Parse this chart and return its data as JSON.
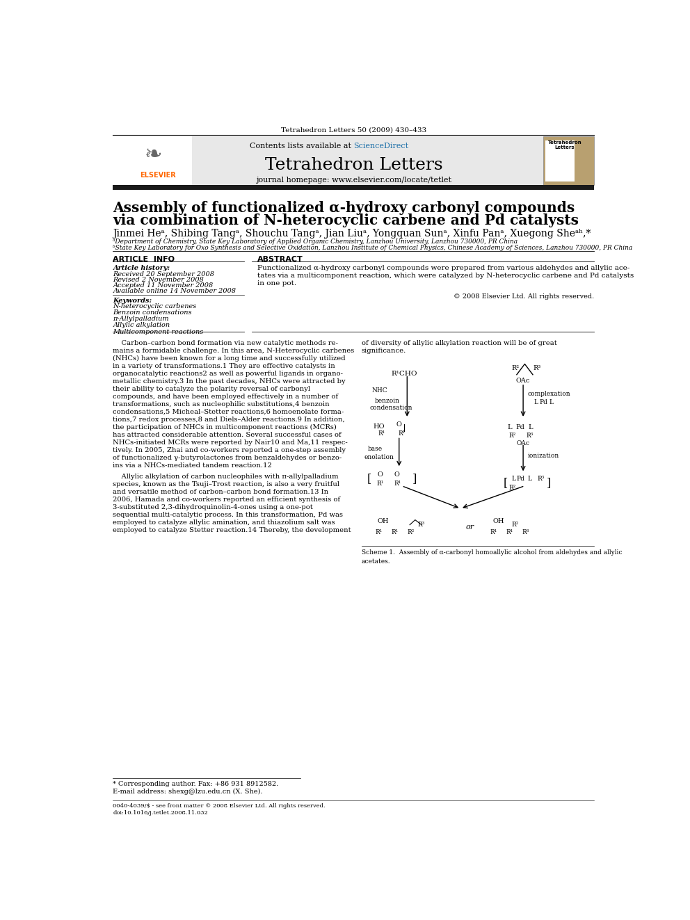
{
  "page_width": 9.92,
  "page_height": 13.23,
  "bg_color": "#ffffff",
  "journal_ref": "Tetrahedron Letters 50 (2009) 430–433",
  "header_bg": "#e8e8e8",
  "header_text": "Contents lists available at ScienceDirect",
  "sciencedirect_color": "#1a6ea8",
  "journal_title": "Tetrahedron Letters",
  "journal_homepage": "journal homepage: www.elsevier.com/locate/tetlet",
  "thick_bar_color": "#1a1a1a",
  "article_title_line1": "Assembly of functionalized α-hydroxy carbonyl compounds",
  "article_title_line2": "via combination of N-heterocyclic carbene and Pd catalysts",
  "authors": "Jinmei Heᵃ, Shibing Tangᵃ, Shouchu Tangᵃ, Jian Liuᵃ, Yongquan Sunᵃ, Xinfu Panᵃ, Xuegong Sheᵃʰ,*",
  "affil_a": "ᵃDepartment of Chemistry, State Key Laboratory of Applied Organic Chemistry, Lanzhou University, Lanzhou 730000, PR China",
  "affil_b": "ᵇState Key Laboratory for Oxo Synthesis and Selective Oxidation, Lanzhou Institute of Chemical Physics, Chinese Academy of Sciences, Lanzhou 730000, PR China",
  "article_info_label": "ARTICLE  INFO",
  "abstract_label": "ABSTRACT",
  "article_history_label": "Article history:",
  "received": "Received 20 September 2008",
  "revised": "Revised 2 November 2008",
  "accepted": "Accepted 11 November 2008",
  "available": "Available online 14 November 2008",
  "keywords_label": "Keywords:",
  "keywords": [
    "N-heterocyclic carbenes",
    "Benzoin condensations",
    "π-Allylpalladium",
    "Allylic alkylation",
    "Multicomponent reactions"
  ],
  "abstract_text": "Functionalized α-hydroxy carbonyl compounds were prepared from various aldehydes and allylic acetates via a multicomponent reaction, which were catalyzed by N-heterocyclic carbene and Pd catalysts in one pot.",
  "copyright": "© 2008 Elsevier Ltd. All rights reserved.",
  "body_col1_para1": "    Carbon–carbon bond formation via new catalytic methods remains a formidable challenge. In this area, N-Heterocyclic carbenes (NHCs) have been known for a long time and successfully utilized in a variety of transformations.1 They are effective catalysts in organocatalytic reactions2 as well as powerful ligands in organometallic chemistry.3 In the past decades, NHCs were attracted by their ability to catalyze the polarity reversal of carbonyl compounds, and have been employed effectively in a number of transformations, such as nucleophilic substitutions,4 benzoin condensations,5 Micheal–Stetter reactions,6 homoenolate formations,7 redox processes,8 and Diels–Alder reactions.9 In addition, the participation of NHCs in multicomponent reactions (MCRs) has attracted considerable attention. Several successful cases of NHCs-initiated MCRs were reported by Nair10 and Ma,11 respectively. In 2005, Zhai and co-workers reported a one-step assembly of functionalized γ-butyrolactones from benzaldehydes or benzoins via a NHCs-mediated tandem reaction.12",
  "body_col1_para2": "    Allylic alkylation of carbon nucleophiles with π-allylpalladium species, known as the Tsuji–Trost reaction, is also a very fruitful and versatile method of carbon–carbon bond formation.13 In 2006, Hamada and co-workers reported an efficient synthesis of 3-substituted 2,3-dihydroquinolin-4-ones using a one-pot sequential multi-catalytic process. In this transformation, Pd was employed to catalyze allylic amination, and thiazolium salt was employed to catalyze Stetter reaction.14 Thereby, the development",
  "body_col2_para1": "of diversity of allylic alkylation reaction will be of great significance.",
  "scheme_caption": "Scheme 1.  Assembly of α-carbonyl homoallylic alcohol from aldehydes and allylic\nacetates.",
  "footnote_star": "* Corresponding author. Fax: +86 931 8912582.",
  "footnote_email": "E-mail address: shexg@lzu.edu.cn (X. She).",
  "footer_issn": "0040-4039/$ - see front matter © 2008 Elsevier Ltd. All rights reserved.",
  "footer_doi": "doi:10.1016/j.tetlet.2008.11.032"
}
